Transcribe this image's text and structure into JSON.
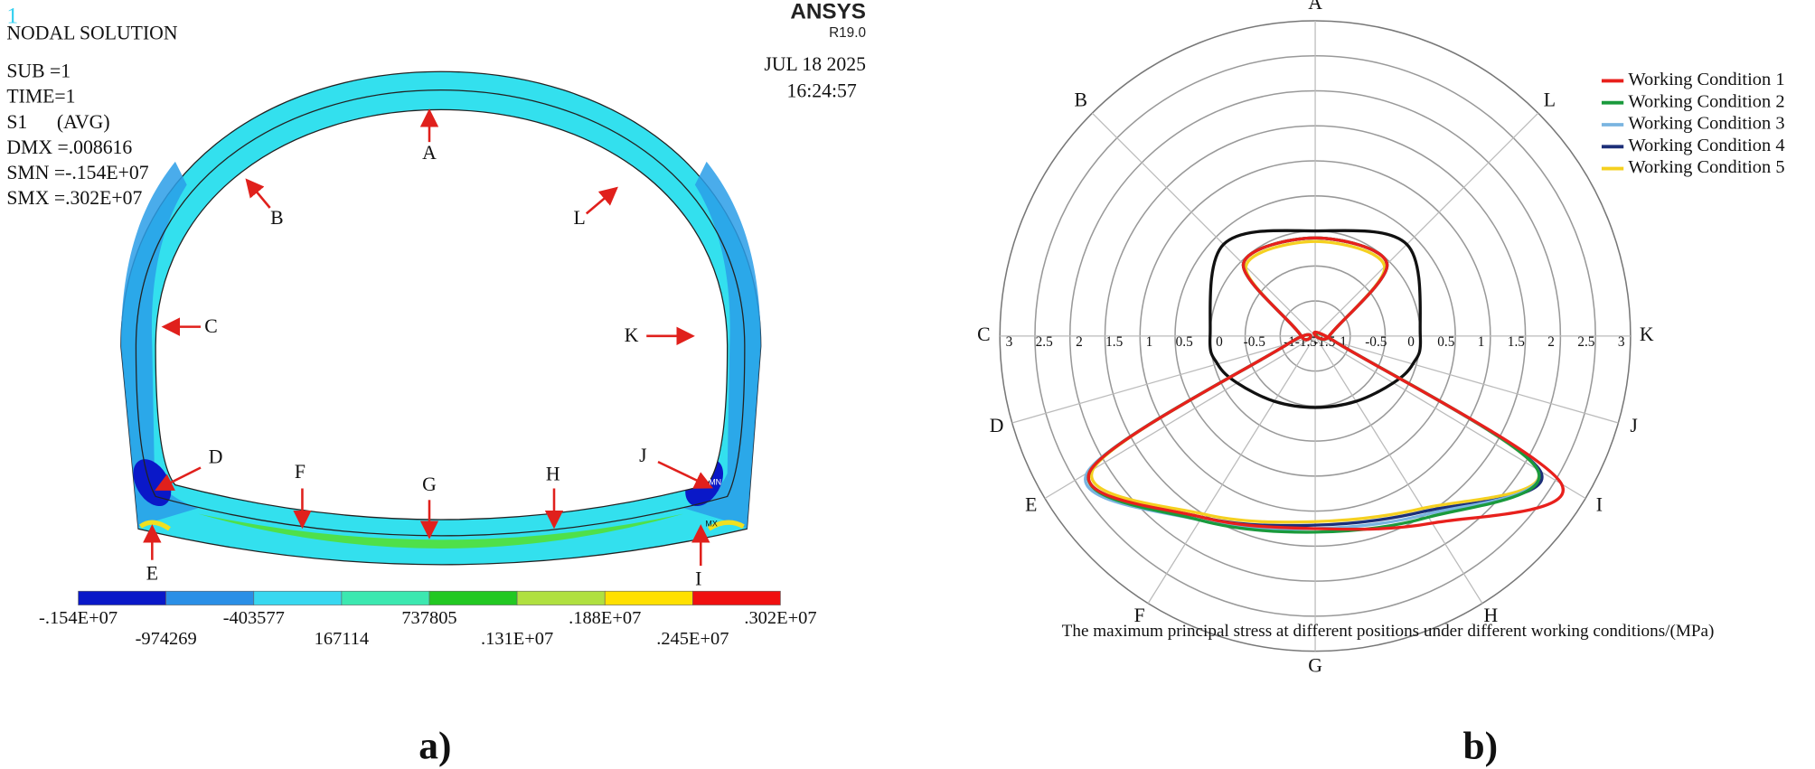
{
  "panel_a": {
    "logo": "1",
    "title": "NODAL SOLUTION",
    "info_lines": [
      "SUB =1",
      "TIME=1",
      "S1      (AVG)",
      "DMX =.008616",
      "SMN =-.154E+07",
      "SMX =.302E+07"
    ],
    "brand": "ANSYS",
    "version": "R19.0",
    "date": "JUL 18 2025",
    "time": "16:24:57",
    "point_labels": [
      "A",
      "B",
      "L",
      "C",
      "K",
      "D",
      "J",
      "F",
      "G",
      "H",
      "E",
      "I"
    ],
    "min_marker": "MN",
    "max_marker": "MX",
    "colorbar_labels": [
      "-.154E+07",
      "-974269",
      "-403577",
      "167114",
      "737805",
      ".131E+07",
      ".188E+07",
      ".245E+07",
      ".302E+07"
    ],
    "caption": "a)"
  },
  "chart_data": {
    "type": "radar",
    "categories": [
      "A",
      "L",
      "K",
      "J",
      "I",
      "H",
      "G",
      "F",
      "E",
      "D",
      "C",
      "B"
    ],
    "rlim": [
      -1.5,
      3
    ],
    "rticks": [
      -1.5,
      -1,
      -0.5,
      0,
      0.5,
      1,
      1.5,
      2,
      2.5,
      3
    ],
    "xlabel": "The maximum principal stress at different positions under different working conditions/(MPa)",
    "legend": "upper right",
    "grid": true,
    "series": [
      {
        "name": "Working Condition 1",
        "color": "#e8201c",
        "values": [
          -0.1,
          -0.05,
          -1.3,
          -1.2,
          2.6,
          1.65,
          1.25,
          1.55,
          2.25,
          -1.1,
          -1.3,
          -0.05
        ]
      },
      {
        "name": "Working Condition 2",
        "color": "#1a9a3c",
        "values": [
          -0.1,
          -0.05,
          -1.3,
          -1.2,
          2.2,
          1.55,
          1.3,
          1.6,
          2.25,
          -1.1,
          -1.3,
          -0.05
        ]
      },
      {
        "name": "Working Condition 3",
        "color": "#7ab4e0",
        "values": [
          -0.1,
          -0.05,
          -1.3,
          -1.2,
          2.2,
          1.5,
          1.25,
          1.6,
          2.3,
          -1.1,
          -1.3,
          -0.05
        ]
      },
      {
        "name": "Working Condition 4",
        "color": "#1c2f78",
        "values": [
          -0.1,
          -0.05,
          -1.3,
          -1.2,
          2.25,
          1.45,
          1.2,
          1.55,
          2.25,
          -1.1,
          -1.3,
          -0.05
        ]
      },
      {
        "name": "Working Condition 5",
        "color": "#f5d020",
        "values": [
          -0.15,
          -0.1,
          -1.3,
          -1.2,
          2.2,
          1.4,
          1.15,
          1.5,
          2.2,
          -1.1,
          -1.3,
          -0.1
        ]
      },
      {
        "color": "#111111",
        "values": [
          0,
          0.35,
          0,
          -0.05,
          -0.2,
          -0.4,
          -0.48,
          -0.4,
          -0.2,
          -0.05,
          0,
          0.35
        ]
      }
    ]
  },
  "caption_b": "b)"
}
